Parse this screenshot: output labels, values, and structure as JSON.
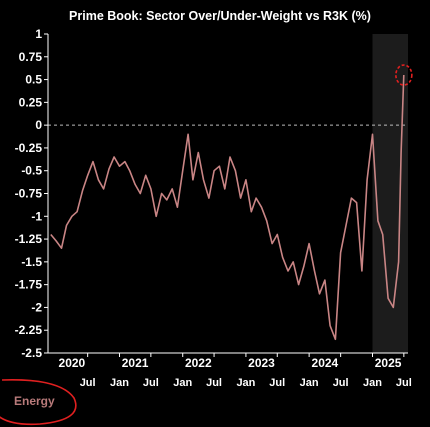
{
  "chart_data": {
    "type": "line",
    "title": "Prime Book: Sector Over/Under-Weight vs R3K (%)",
    "ylim": [
      -2.5,
      1
    ],
    "yticks": [
      "1",
      "0.75",
      "0.5",
      "0.25",
      "0",
      "-0.25",
      "-0.5",
      "-0.75",
      "-1",
      "-1.25",
      "-1.5",
      "-1.75",
      "-2",
      "-2.25",
      "-2.5"
    ],
    "xlim": [
      "2019-11-15",
      "2025-07-25"
    ],
    "x_tick_labels": [
      {
        "date": "2020-07-01",
        "label": "Jul"
      },
      {
        "date": "2021-01-01",
        "label": "Jan"
      },
      {
        "date": "2021-07-01",
        "label": "Jul"
      },
      {
        "date": "2022-01-01",
        "label": "Jan"
      },
      {
        "date": "2022-07-01",
        "label": "Jul"
      },
      {
        "date": "2023-01-01",
        "label": "Jan"
      },
      {
        "date": "2023-07-01",
        "label": "Jul"
      },
      {
        "date": "2024-01-01",
        "label": "Jan"
      },
      {
        "date": "2024-07-01",
        "label": "Jul"
      },
      {
        "date": "2025-01-01",
        "label": "Jan"
      },
      {
        "date": "2025-07-01",
        "label": "Jul"
      }
    ],
    "year_labels": [
      {
        "date": "2020-04-01",
        "label": "2020"
      },
      {
        "date": "2021-04-01",
        "label": "2021"
      },
      {
        "date": "2022-04-01",
        "label": "2022"
      },
      {
        "date": "2023-04-01",
        "label": "2023"
      },
      {
        "date": "2024-04-01",
        "label": "2024"
      },
      {
        "date": "2025-04-01",
        "label": "2025"
      }
    ],
    "shaded_region": {
      "from": "2025-01-01",
      "to": "2025-07-25"
    },
    "reference_line_y": 0,
    "series": [
      {
        "color": "#c98585",
        "x": [
          "2019-12-01",
          "2020-01-01",
          "2020-02-01",
          "2020-03-01",
          "2020-04-01",
          "2020-05-01",
          "2020-06-01",
          "2020-07-01",
          "2020-08-01",
          "2020-09-01",
          "2020-10-01",
          "2020-11-01",
          "2020-12-01",
          "2021-01-01",
          "2021-02-01",
          "2021-03-01",
          "2021-04-01",
          "2021-05-01",
          "2021-06-01",
          "2021-07-01",
          "2021-08-01",
          "2021-09-01",
          "2021-10-01",
          "2021-11-01",
          "2021-12-01",
          "2022-01-01",
          "2022-02-01",
          "2022-03-01",
          "2022-04-01",
          "2022-05-01",
          "2022-06-01",
          "2022-07-01",
          "2022-08-01",
          "2022-09-01",
          "2022-10-01",
          "2022-11-01",
          "2022-12-01",
          "2023-01-01",
          "2023-02-01",
          "2023-03-01",
          "2023-04-01",
          "2023-05-01",
          "2023-06-01",
          "2023-07-01",
          "2023-08-01",
          "2023-09-01",
          "2023-10-01",
          "2023-11-01",
          "2023-12-01",
          "2024-01-01",
          "2024-02-01",
          "2024-03-01",
          "2024-04-01",
          "2024-05-01",
          "2024-06-01",
          "2024-07-01",
          "2024-08-01",
          "2024-09-01",
          "2024-10-01",
          "2024-11-01",
          "2024-12-01",
          "2025-01-01",
          "2025-02-01",
          "2025-03-01",
          "2025-04-01",
          "2025-05-01",
          "2025-06-01",
          "2025-06-15",
          "2025-07-01"
        ],
        "values": [
          -1.2,
          -1.27,
          -1.35,
          -1.1,
          -1.0,
          -0.95,
          -0.72,
          -0.55,
          -0.4,
          -0.6,
          -0.7,
          -0.48,
          -0.35,
          -0.45,
          -0.4,
          -0.5,
          -0.65,
          -0.75,
          -0.55,
          -0.7,
          -1.0,
          -0.75,
          -0.82,
          -0.7,
          -0.9,
          -0.5,
          -0.1,
          -0.6,
          -0.3,
          -0.6,
          -0.8,
          -0.5,
          -0.45,
          -0.7,
          -0.35,
          -0.5,
          -0.8,
          -0.6,
          -0.95,
          -0.8,
          -0.9,
          -1.05,
          -1.3,
          -1.2,
          -1.45,
          -1.6,
          -1.5,
          -1.75,
          -1.55,
          -1.3,
          -1.6,
          -1.85,
          -1.7,
          -2.2,
          -2.35,
          -1.4,
          -1.1,
          -0.8,
          -0.85,
          -1.6,
          -0.6,
          -0.1,
          -1.05,
          -1.2,
          -1.9,
          -2.0,
          -1.5,
          -0.3,
          0.55
        ]
      }
    ],
    "highlight_marker": {
      "x": "2025-07-01",
      "y": 0.55,
      "color": "#e02020"
    }
  },
  "annotation": {
    "label": "Energy",
    "circle_color": "#e02020"
  }
}
